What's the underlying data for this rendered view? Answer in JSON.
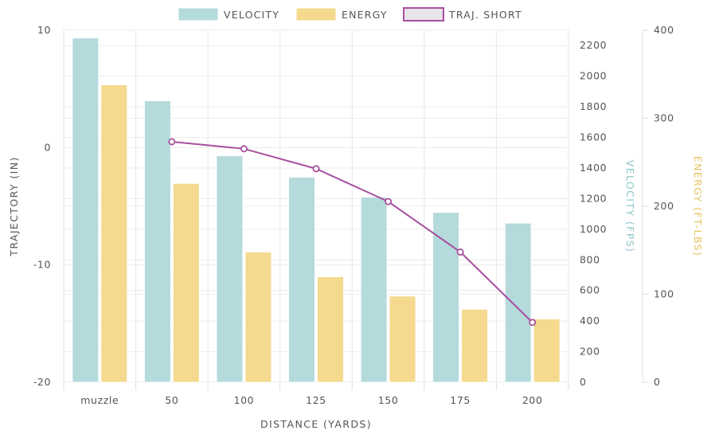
{
  "chart_data": {
    "type": "bar",
    "categories": [
      "muzzle",
      "50",
      "100",
      "125",
      "150",
      "175",
      "200"
    ],
    "xlabel": "DISTANCE (YARDS)",
    "series": [
      {
        "name": "VELOCITY",
        "type": "bar",
        "axis": "velocity",
        "color": "#b4dadc",
        "values": [
          2250,
          1840,
          1480,
          1340,
          1210,
          1110,
          1040
        ]
      },
      {
        "name": "ENERGY",
        "type": "bar",
        "axis": "energy",
        "color": "#f4d98e",
        "values": [
          338,
          226,
          148,
          120,
          98,
          83,
          72
        ]
      },
      {
        "name": "TRAJ. SHORT",
        "type": "line",
        "axis": "trajectory",
        "color": "#a7509f",
        "values": [
          null,
          0.5,
          -0.1,
          -1.8,
          -4.6,
          -8.9,
          -14.9
        ]
      }
    ],
    "axes": {
      "trajectory": {
        "label": "TRAJECTORY (IN)",
        "side": "left",
        "ylim": [
          -20,
          10
        ],
        "ticks": [
          "-20",
          "-10",
          "0",
          "10"
        ],
        "color": "#555555"
      },
      "velocity": {
        "label": "VELOCITY (FPS)",
        "side": "right",
        "ylim": [
          0,
          2300
        ],
        "ticks": [
          "0",
          "200",
          "400",
          "600",
          "800",
          "1000",
          "1200",
          "1400",
          "1600",
          "1800",
          "2000",
          "2200"
        ],
        "color": "#8cc7c9"
      },
      "energy": {
        "label": "ENERGY (FT-LBS)",
        "side": "right",
        "ylim": [
          0,
          400
        ],
        "ticks": [
          "0",
          "100",
          "200",
          "300",
          "400"
        ],
        "color": "#e7c460"
      }
    },
    "grid": true,
    "legend_position": "top-center"
  }
}
